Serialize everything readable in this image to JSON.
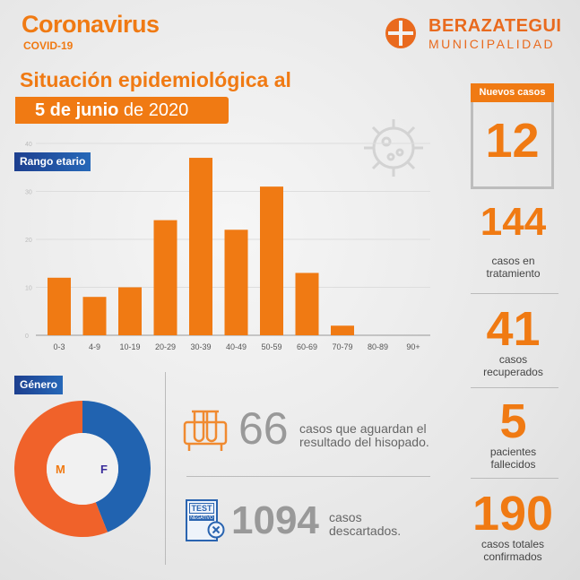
{
  "header": {
    "title": "Coronavirus",
    "subtitle": "COVID-19",
    "headline": "Situación epidemiológica al",
    "date_bold": "5 de junio",
    "date_rest": " de 2020"
  },
  "logo": {
    "name": "BERAZATEGUI",
    "sub": "MUNICIPALIDAD"
  },
  "colors": {
    "accent": "#f07a13",
    "blue": "#2163b0"
  },
  "chart_data": [
    {
      "type": "bar",
      "title": "Rango etario",
      "categories": [
        "0-3",
        "4-9",
        "10-19",
        "20-29",
        "30-39",
        "40-49",
        "50-59",
        "60-69",
        "70-79",
        "80-89",
        "90+"
      ],
      "values": [
        12,
        8,
        10,
        24,
        37,
        22,
        31,
        13,
        2,
        0,
        0
      ],
      "ylim": [
        0,
        40
      ],
      "yticks": [
        0,
        10,
        20,
        30,
        40
      ],
      "grid": true
    },
    {
      "type": "pie",
      "title": "Género",
      "categories": [
        "M",
        "F"
      ],
      "values": [
        56,
        44
      ],
      "colors": [
        "#f0622a",
        "#2163b0"
      ],
      "donut": true
    }
  ],
  "stats": {
    "nuevos": {
      "label": "Nuevos casos",
      "value": "12"
    },
    "tratamiento": {
      "value": "144",
      "label": "casos en tratamiento"
    },
    "recuperados": {
      "value": "41",
      "label": "casos recuperados"
    },
    "fallecidos": {
      "value": "5",
      "label": "pacientes fallecidos"
    },
    "totales": {
      "value": "190",
      "label": "casos totales confirmados"
    },
    "aguardan": {
      "value": "66",
      "line1": "casos que aguardan el",
      "line2": "resultado del hisopado."
    },
    "descartados": {
      "value": "1094",
      "line1": "casos",
      "line2": "descartados."
    }
  },
  "icons": {
    "test_tubes": "test-tubes-icon",
    "test_negative": "test-negative-icon",
    "virus": "virus-icon",
    "test_label": "TEST",
    "negative_label": "NEGATIVO"
  }
}
